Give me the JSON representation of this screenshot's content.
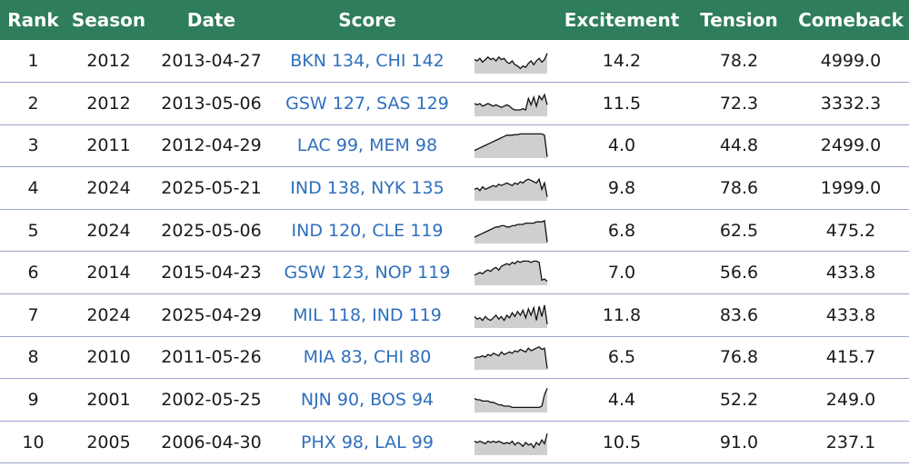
{
  "table": {
    "headers": {
      "rank": "Rank",
      "season": "Season",
      "date": "Date",
      "score": "Score",
      "trend": "",
      "excitement": "Excitement",
      "tension": "Tension",
      "comeback": "Comeback"
    },
    "rows": [
      {
        "rank": "1",
        "season": "2012",
        "date": "2013-04-27",
        "score": "BKN 134, CHI 142",
        "excitement": "14.2",
        "tension": "78.2",
        "comeback": "4999.0",
        "sparkline": [
          0.45,
          0.5,
          0.4,
          0.55,
          0.45,
          0.35,
          0.45,
          0.4,
          0.5,
          0.35,
          0.45,
          0.4,
          0.55,
          0.6,
          0.5,
          0.65,
          0.7,
          0.8,
          0.7,
          0.75,
          0.6,
          0.5,
          0.65,
          0.5,
          0.4,
          0.55,
          0.45,
          0.2
        ]
      },
      {
        "rank": "2",
        "season": "2012",
        "date": "2013-05-06",
        "score": "GSW 127, SAS 129",
        "excitement": "11.5",
        "tension": "72.3",
        "comeback": "3332.3",
        "sparkline": [
          0.5,
          0.55,
          0.5,
          0.6,
          0.55,
          0.5,
          0.55,
          0.6,
          0.55,
          0.6,
          0.65,
          0.6,
          0.55,
          0.6,
          0.7,
          0.75,
          0.75,
          0.75,
          0.7,
          0.75,
          0.3,
          0.55,
          0.25,
          0.6,
          0.2,
          0.35,
          0.15,
          0.55
        ]
      },
      {
        "rank": "3",
        "season": "2011",
        "date": "2012-04-29",
        "score": "LAC 99, MEM 98",
        "excitement": "4.0",
        "tension": "44.8",
        "comeback": "2499.0",
        "sparkline": [
          0.7,
          0.65,
          0.6,
          0.55,
          0.5,
          0.45,
          0.4,
          0.35,
          0.3,
          0.25,
          0.2,
          0.15,
          0.1,
          0.1,
          0.1,
          0.08,
          0.08,
          0.05,
          0.05,
          0.05,
          0.05,
          0.05,
          0.05,
          0.05,
          0.05,
          0.05,
          0.1,
          0.95
        ]
      },
      {
        "rank": "4",
        "season": "2024",
        "date": "2025-05-21",
        "score": "IND 138, NYK 135",
        "excitement": "9.8",
        "tension": "78.6",
        "comeback": "1999.0",
        "sparkline": [
          0.55,
          0.5,
          0.6,
          0.45,
          0.55,
          0.5,
          0.45,
          0.4,
          0.45,
          0.35,
          0.4,
          0.35,
          0.3,
          0.35,
          0.4,
          0.3,
          0.35,
          0.25,
          0.3,
          0.2,
          0.15,
          0.2,
          0.25,
          0.3,
          0.15,
          0.55,
          0.3,
          0.85
        ]
      },
      {
        "rank": "5",
        "season": "2024",
        "date": "2025-05-06",
        "score": "IND 120, CLE 119",
        "excitement": "6.8",
        "tension": "62.5",
        "comeback": "475.2",
        "sparkline": [
          0.75,
          0.7,
          0.65,
          0.6,
          0.55,
          0.5,
          0.45,
          0.4,
          0.35,
          0.35,
          0.3,
          0.3,
          0.35,
          0.35,
          0.3,
          0.3,
          0.25,
          0.25,
          0.25,
          0.2,
          0.2,
          0.2,
          0.2,
          0.15,
          0.15,
          0.15,
          0.1,
          0.95
        ]
      },
      {
        "rank": "6",
        "season": "2014",
        "date": "2015-04-23",
        "score": "GSW 123, NOP 119",
        "excitement": "7.0",
        "tension": "56.6",
        "comeback": "433.8",
        "sparkline": [
          0.6,
          0.55,
          0.5,
          0.55,
          0.45,
          0.4,
          0.45,
          0.35,
          0.3,
          0.4,
          0.25,
          0.2,
          0.15,
          0.2,
          0.1,
          0.15,
          0.05,
          0.1,
          0.05,
          0.05,
          0.05,
          0.1,
          0.05,
          0.05,
          0.1,
          0.8,
          0.75,
          0.85
        ]
      },
      {
        "rank": "7",
        "season": "2024",
        "date": "2025-04-29",
        "score": "MIL 118, IND 119",
        "excitement": "11.8",
        "tension": "83.6",
        "comeback": "433.8",
        "sparkline": [
          0.55,
          0.65,
          0.6,
          0.7,
          0.55,
          0.65,
          0.7,
          0.6,
          0.5,
          0.65,
          0.55,
          0.7,
          0.5,
          0.6,
          0.4,
          0.55,
          0.35,
          0.5,
          0.3,
          0.6,
          0.25,
          0.5,
          0.2,
          0.7,
          0.15,
          0.55,
          0.1,
          0.85
        ]
      },
      {
        "rank": "8",
        "season": "2010",
        "date": "2011-05-26",
        "score": "MIA 83, CHI 80",
        "excitement": "6.5",
        "tension": "76.8",
        "comeback": "415.7",
        "sparkline": [
          0.55,
          0.5,
          0.5,
          0.45,
          0.5,
          0.4,
          0.45,
          0.35,
          0.4,
          0.45,
          0.3,
          0.4,
          0.35,
          0.3,
          0.35,
          0.25,
          0.3,
          0.2,
          0.25,
          0.3,
          0.15,
          0.25,
          0.2,
          0.15,
          0.1,
          0.2,
          0.15,
          0.95
        ]
      },
      {
        "rank": "9",
        "season": "2001",
        "date": "2002-05-25",
        "score": "NJN 90, BOS 94",
        "excitement": "4.4",
        "tension": "52.2",
        "comeback": "249.0",
        "sparkline": [
          0.45,
          0.5,
          0.5,
          0.55,
          0.55,
          0.55,
          0.6,
          0.6,
          0.65,
          0.7,
          0.7,
          0.75,
          0.75,
          0.75,
          0.8,
          0.8,
          0.8,
          0.8,
          0.8,
          0.8,
          0.8,
          0.8,
          0.8,
          0.8,
          0.8,
          0.75,
          0.3,
          0.05
        ]
      },
      {
        "rank": "10",
        "season": "2005",
        "date": "2006-04-30",
        "score": "PHX 98, LAL 99",
        "excitement": "10.5",
        "tension": "91.0",
        "comeback": "237.1",
        "sparkline": [
          0.45,
          0.5,
          0.45,
          0.5,
          0.55,
          0.45,
          0.5,
          0.45,
          0.5,
          0.45,
          0.5,
          0.55,
          0.5,
          0.55,
          0.45,
          0.6,
          0.5,
          0.55,
          0.65,
          0.5,
          0.6,
          0.55,
          0.7,
          0.5,
          0.6,
          0.4,
          0.55,
          0.15
        ]
      }
    ]
  }
}
